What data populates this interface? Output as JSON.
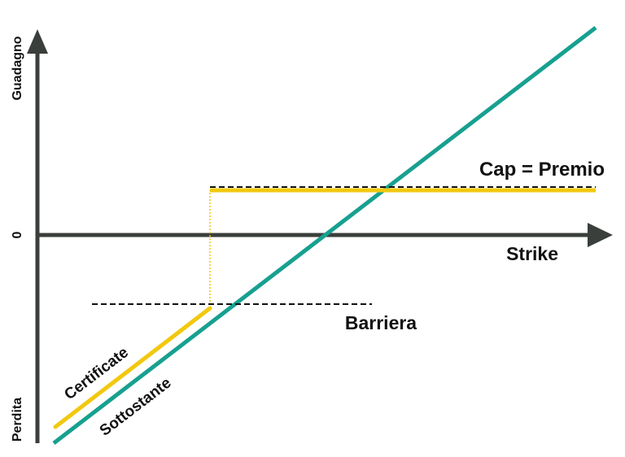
{
  "labels": {
    "y_axis_top": "Guadagno",
    "y_axis_bottom": "Perdita",
    "y_zero": "0",
    "x_axis": "Strike",
    "cap": "Cap = Premio",
    "barrier": "Barriera",
    "certificate": "Certificate",
    "underlying": "Sottostante"
  },
  "colors": {
    "axis": "#3a3f3b",
    "certificate": "#f2c80f",
    "underlying": "#17a090",
    "dashed": "#111111",
    "text": "#111111"
  }
}
